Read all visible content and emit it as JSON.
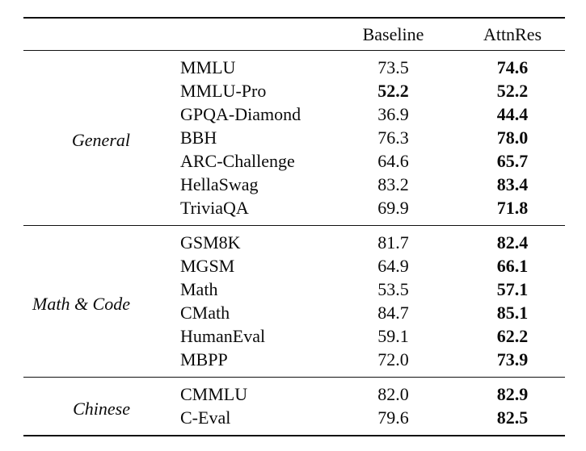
{
  "table": {
    "header": {
      "baseline": "Baseline",
      "attnres": "AttnRes"
    },
    "rule_color": "#111111",
    "groups": [
      {
        "label": "General",
        "rows": [
          {
            "name": "MMLU",
            "baseline": "73.5",
            "attnres": "74.6",
            "baseline_bold": false,
            "attnres_bold": true
          },
          {
            "name": "MMLU-Pro",
            "baseline": "52.2",
            "attnres": "52.2",
            "baseline_bold": true,
            "attnres_bold": true
          },
          {
            "name": "GPQA-Diamond",
            "baseline": "36.9",
            "attnres": "44.4",
            "baseline_bold": false,
            "attnres_bold": true
          },
          {
            "name": "BBH",
            "baseline": "76.3",
            "attnres": "78.0",
            "baseline_bold": false,
            "attnres_bold": true
          },
          {
            "name": "ARC-Challenge",
            "baseline": "64.6",
            "attnres": "65.7",
            "baseline_bold": false,
            "attnres_bold": true
          },
          {
            "name": "HellaSwag",
            "baseline": "83.2",
            "attnres": "83.4",
            "baseline_bold": false,
            "attnres_bold": true
          },
          {
            "name": "TriviaQA",
            "baseline": "69.9",
            "attnres": "71.8",
            "baseline_bold": false,
            "attnres_bold": true
          }
        ]
      },
      {
        "label": "Math & Code",
        "rows": [
          {
            "name": "GSM8K",
            "baseline": "81.7",
            "attnres": "82.4",
            "baseline_bold": false,
            "attnres_bold": true
          },
          {
            "name": "MGSM",
            "baseline": "64.9",
            "attnres": "66.1",
            "baseline_bold": false,
            "attnres_bold": true
          },
          {
            "name": "Math",
            "baseline": "53.5",
            "attnres": "57.1",
            "baseline_bold": false,
            "attnres_bold": true
          },
          {
            "name": "CMath",
            "baseline": "84.7",
            "attnres": "85.1",
            "baseline_bold": false,
            "attnres_bold": true
          },
          {
            "name": "HumanEval",
            "baseline": "59.1",
            "attnres": "62.2",
            "baseline_bold": false,
            "attnres_bold": true
          },
          {
            "name": "MBPP",
            "baseline": "72.0",
            "attnres": "73.9",
            "baseline_bold": false,
            "attnres_bold": true
          }
        ]
      },
      {
        "label": "Chinese",
        "rows": [
          {
            "name": "CMMLU",
            "baseline": "82.0",
            "attnres": "82.9",
            "baseline_bold": false,
            "attnres_bold": true
          },
          {
            "name": "C-Eval",
            "baseline": "79.6",
            "attnres": "82.5",
            "baseline_bold": false,
            "attnres_bold": true
          }
        ]
      }
    ]
  }
}
